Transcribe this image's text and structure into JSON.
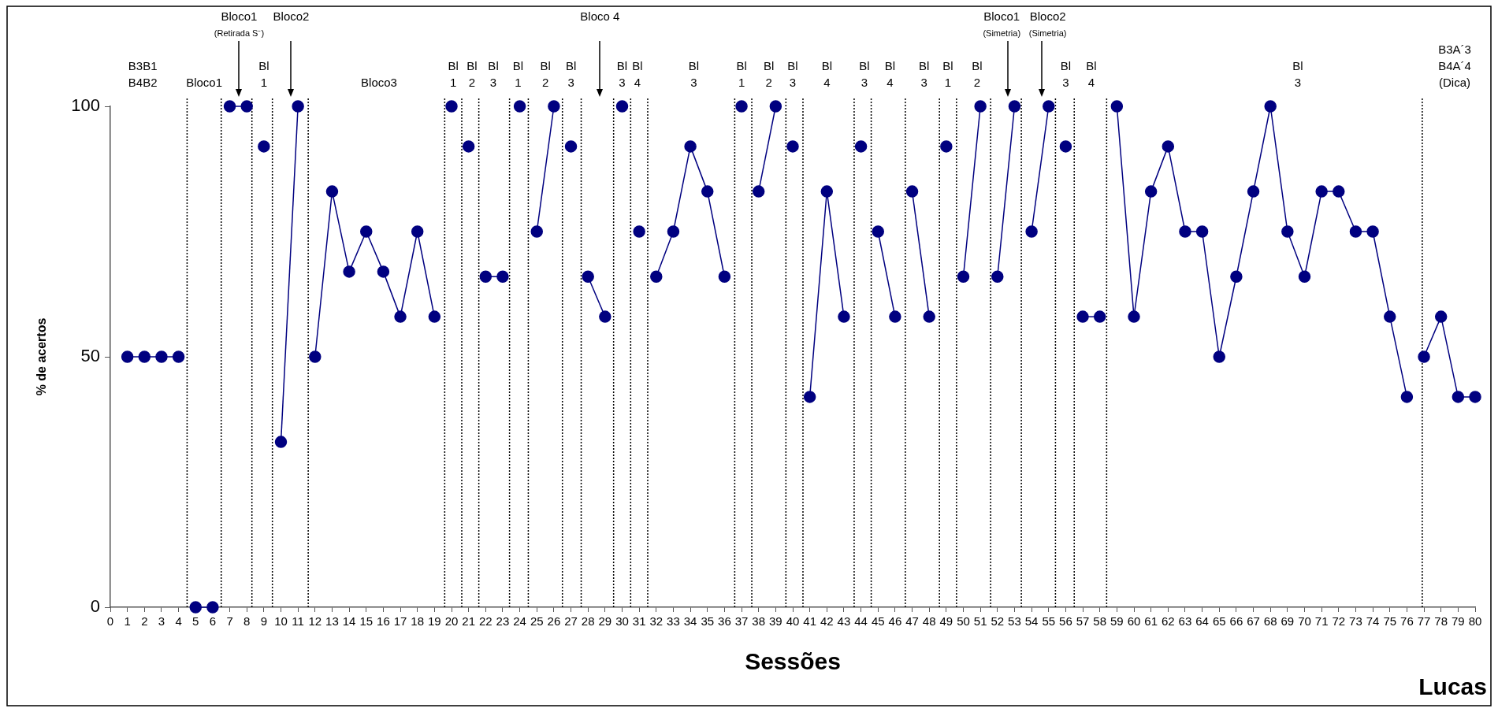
{
  "chart_data": {
    "type": "line",
    "xlabel": "Sessões",
    "ylabel": "% de acertos",
    "xlim": [
      0,
      80
    ],
    "xticks": [
      0,
      1,
      2,
      3,
      4,
      5,
      6,
      7,
      8,
      9,
      10,
      11,
      12,
      13,
      14,
      15,
      16,
      17,
      18,
      19,
      20,
      21,
      22,
      23,
      24,
      25,
      26,
      27,
      28,
      29,
      30,
      31,
      32,
      33,
      34,
      35,
      36,
      37,
      38,
      39,
      40,
      41,
      42,
      43,
      44,
      45,
      46,
      47,
      48,
      49,
      50,
      51,
      52,
      53,
      54,
      55,
      56,
      57,
      58,
      59,
      60,
      61,
      62,
      63,
      64,
      65,
      66,
      67,
      68,
      69,
      70,
      71,
      72,
      73,
      74,
      75,
      76,
      77,
      78,
      79,
      80
    ],
    "ylim": [
      0,
      100
    ],
    "yticks": [
      0,
      50,
      100
    ],
    "grid": false,
    "legend": false,
    "marker": "circle",
    "series": [
      {
        "color": "#000080",
        "x": [
          1,
          2,
          3,
          4
        ],
        "values": [
          50,
          50,
          50,
          50
        ]
      },
      {
        "color": "#000080",
        "x": [
          5,
          6
        ],
        "values": [
          0,
          0
        ]
      },
      {
        "color": "#000080",
        "x": [
          7,
          8
        ],
        "values": [
          100,
          100
        ]
      },
      {
        "color": "#000080",
        "x": [
          9
        ],
        "values": [
          92
        ]
      },
      {
        "color": "#000080",
        "x": [
          10,
          11
        ],
        "values": [
          33,
          100
        ]
      },
      {
        "color": "#000080",
        "x": [
          12,
          13,
          14,
          15,
          16,
          17,
          18,
          19
        ],
        "values": [
          50,
          83,
          67,
          75,
          67,
          58,
          75,
          58
        ]
      },
      {
        "color": "#000080",
        "x": [
          20
        ],
        "values": [
          100
        ]
      },
      {
        "color": "#000080",
        "x": [
          21
        ],
        "values": [
          92
        ]
      },
      {
        "color": "#000080",
        "x": [
          22,
          23
        ],
        "values": [
          66,
          66
        ]
      },
      {
        "color": "#000080",
        "x": [
          24
        ],
        "values": [
          100
        ]
      },
      {
        "color": "#000080",
        "x": [
          25,
          26
        ],
        "values": [
          75,
          100
        ]
      },
      {
        "color": "#000080",
        "x": [
          27
        ],
        "values": [
          92
        ]
      },
      {
        "color": "#000080",
        "x": [
          28,
          29
        ],
        "values": [
          66,
          58
        ]
      },
      {
        "color": "#000080",
        "x": [
          30
        ],
        "values": [
          100
        ]
      },
      {
        "color": "#000080",
        "x": [
          31
        ],
        "values": [
          75
        ]
      },
      {
        "color": "#000080",
        "x": [
          32,
          33,
          34,
          35,
          36
        ],
        "values": [
          66,
          75,
          92,
          83,
          66
        ]
      },
      {
        "color": "#000080",
        "x": [
          37
        ],
        "values": [
          100
        ]
      },
      {
        "color": "#000080",
        "x": [
          38,
          39
        ],
        "values": [
          83,
          100
        ]
      },
      {
        "color": "#000080",
        "x": [
          40
        ],
        "values": [
          92
        ]
      },
      {
        "color": "#000080",
        "x": [
          41,
          42,
          43
        ],
        "values": [
          42,
          83,
          58
        ]
      },
      {
        "color": "#000080",
        "x": [
          44
        ],
        "values": [
          92
        ]
      },
      {
        "color": "#000080",
        "x": [
          45,
          46
        ],
        "values": [
          75,
          58
        ]
      },
      {
        "color": "#000080",
        "x": [
          47,
          48
        ],
        "values": [
          83,
          58
        ]
      },
      {
        "color": "#000080",
        "x": [
          49
        ],
        "values": [
          92
        ]
      },
      {
        "color": "#000080",
        "x": [
          50,
          51
        ],
        "values": [
          66,
          100
        ]
      },
      {
        "color": "#000080",
        "x": [
          52,
          53
        ],
        "values": [
          66,
          100
        ]
      },
      {
        "color": "#000080",
        "x": [
          54,
          55
        ],
        "values": [
          75,
          100
        ]
      },
      {
        "color": "#000080",
        "x": [
          56
        ],
        "values": [
          92
        ]
      },
      {
        "color": "#000080",
        "x": [
          57,
          58
        ],
        "values": [
          58,
          58
        ]
      },
      {
        "color": "#000080",
        "x": [
          59,
          60,
          61,
          62,
          63,
          64,
          65,
          66,
          67,
          68,
          69,
          70,
          71,
          72,
          73,
          74,
          75,
          76
        ],
        "values": [
          100,
          58,
          83,
          92,
          75,
          75,
          50,
          66,
          83,
          100,
          75,
          66,
          83,
          83,
          75,
          75,
          58,
          42
        ]
      },
      {
        "color": "#000080",
        "x": [
          77,
          78,
          79,
          80
        ],
        "values": [
          50,
          58,
          42,
          42
        ]
      }
    ],
    "ref_lines": [
      {
        "axis": "x",
        "value": 4.5,
        "line_style": "dotted"
      },
      {
        "axis": "x",
        "value": 6.5,
        "line_style": "dotted"
      },
      {
        "axis": "x",
        "value": 8.3,
        "line_style": "dotted"
      },
      {
        "axis": "x",
        "value": 9.5,
        "line_style": "dotted"
      },
      {
        "axis": "x",
        "value": 11.6,
        "line_style": "dotted"
      },
      {
        "axis": "x",
        "value": 19.6,
        "line_style": "dotted"
      },
      {
        "axis": "x",
        "value": 20.6,
        "line_style": "dotted"
      },
      {
        "axis": "x",
        "value": 21.6,
        "line_style": "dotted"
      },
      {
        "axis": "x",
        "value": 23.4,
        "line_style": "dotted"
      },
      {
        "axis": "x",
        "value": 24.5,
        "line_style": "dotted"
      },
      {
        "axis": "x",
        "value": 26.5,
        "line_style": "dotted"
      },
      {
        "axis": "x",
        "value": 27.6,
        "line_style": "dotted"
      },
      {
        "axis": "x",
        "value": 29.5,
        "line_style": "dotted"
      },
      {
        "axis": "x",
        "value": 30.5,
        "line_style": "dotted"
      },
      {
        "axis": "x",
        "value": 31.5,
        "line_style": "dotted"
      },
      {
        "axis": "x",
        "value": 36.6,
        "line_style": "dotted"
      },
      {
        "axis": "x",
        "value": 37.6,
        "line_style": "dotted"
      },
      {
        "axis": "x",
        "value": 39.6,
        "line_style": "dotted"
      },
      {
        "axis": "x",
        "value": 40.6,
        "line_style": "dotted"
      },
      {
        "axis": "x",
        "value": 43.6,
        "line_style": "dotted"
      },
      {
        "axis": "x",
        "value": 44.6,
        "line_style": "dotted"
      },
      {
        "axis": "x",
        "value": 46.6,
        "line_style": "dotted"
      },
      {
        "axis": "x",
        "value": 48.6,
        "line_style": "dotted"
      },
      {
        "axis": "x",
        "value": 49.6,
        "line_style": "dotted"
      },
      {
        "axis": "x",
        "value": 51.6,
        "line_style": "dotted"
      },
      {
        "axis": "x",
        "value": 53.4,
        "line_style": "dotted"
      },
      {
        "axis": "x",
        "value": 55.4,
        "line_style": "dotted"
      },
      {
        "axis": "x",
        "value": 56.5,
        "line_style": "dotted"
      },
      {
        "axis": "x",
        "value": 58.4,
        "line_style": "dotted"
      },
      {
        "axis": "x",
        "value": 76.9,
        "line_style": "dotted"
      }
    ],
    "annotations": [
      "B3B1\nB4B2",
      "Bloco1",
      "Bloco1\n(Retirada S⁻)",
      "Bl\n1",
      "Bloco2",
      "Bloco3",
      "Bl\n1",
      "Bl\n2",
      "Bl\n3",
      "Bl\n1",
      "Bl\n2",
      "Bl\n3",
      "Bloco 4",
      "Bl\n3",
      "Bl\n4",
      "Bl\n3",
      "Bl\n1",
      "Bl\n2",
      "Bl\n3",
      "Bl\n4",
      "Bl\n3",
      "Bl\n4",
      "Bl\n3",
      "Bl\n1",
      "Bl\n2",
      "Bloco1\n(Simetria)",
      "Bloco2\n(Simetria)",
      "Bl\n3",
      "Bl\n4",
      "Bl\n3",
      "B3A´3\nB4A´4\n(Dica)",
      "Lucas"
    ]
  }
}
